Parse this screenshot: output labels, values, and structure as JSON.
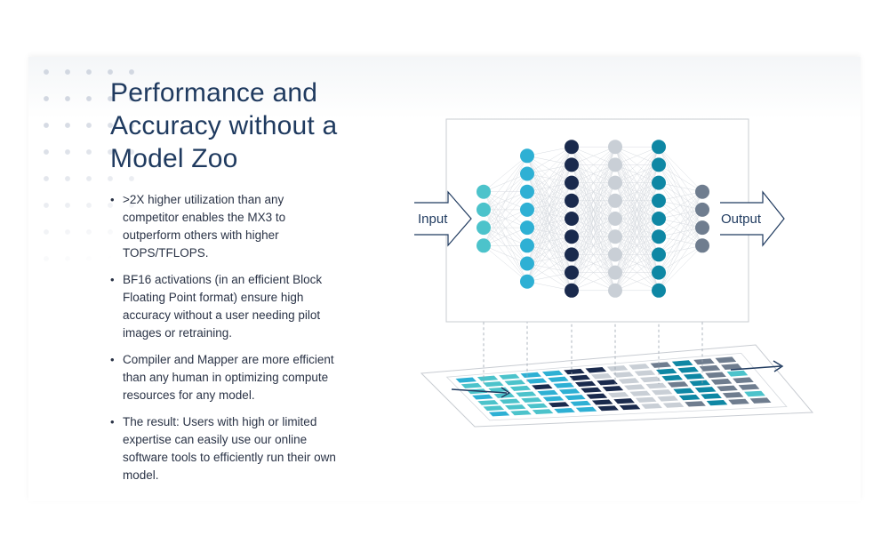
{
  "heading": {
    "title_lines": [
      "Performance and",
      "Accuracy without a",
      "Model Zoo"
    ]
  },
  "bullets": [
    {
      "line1": ">2X higher utilization than any",
      "line2": "competitor enables the MX3 to",
      "line3": "outperform others with higher",
      "line4": "TOPS/TFLOPS."
    },
    {
      "line1": "BF16 activations (in an efficient Block",
      "line2": "Floating Point format) ensure high",
      "line3": "accuracy without a user needing pilot",
      "line4": "images or retraining."
    },
    {
      "line1": "Compiler and Mapper are more efficient",
      "line2": "than any human in optimizing compute",
      "line3": "resources for any model.",
      "line4": ""
    },
    {
      "line1": "The result: Users with high or limited",
      "line2": "expertise can easily use our online",
      "line3": "software tools to efficiently run their own",
      "line4": "model."
    }
  ],
  "diagram": {
    "input_label": "Input",
    "output_label": "Output",
    "layers": [
      {
        "nodes": 4,
        "color": "#4cc3cb"
      },
      {
        "nodes": 8,
        "color": "#2eb0d4"
      },
      {
        "nodes": 9,
        "color": "#1a2a4d"
      },
      {
        "nodes": 9,
        "color": "#c9cfd6"
      },
      {
        "nodes": 9,
        "color": "#0e87a4"
      },
      {
        "nodes": 4,
        "color": "#6f7d8f"
      }
    ],
    "colors": {
      "arrow_stroke": "#1f3a5f",
      "frame_stroke": "#c8ccd2",
      "edge_stroke": "#d7dbe0"
    }
  }
}
